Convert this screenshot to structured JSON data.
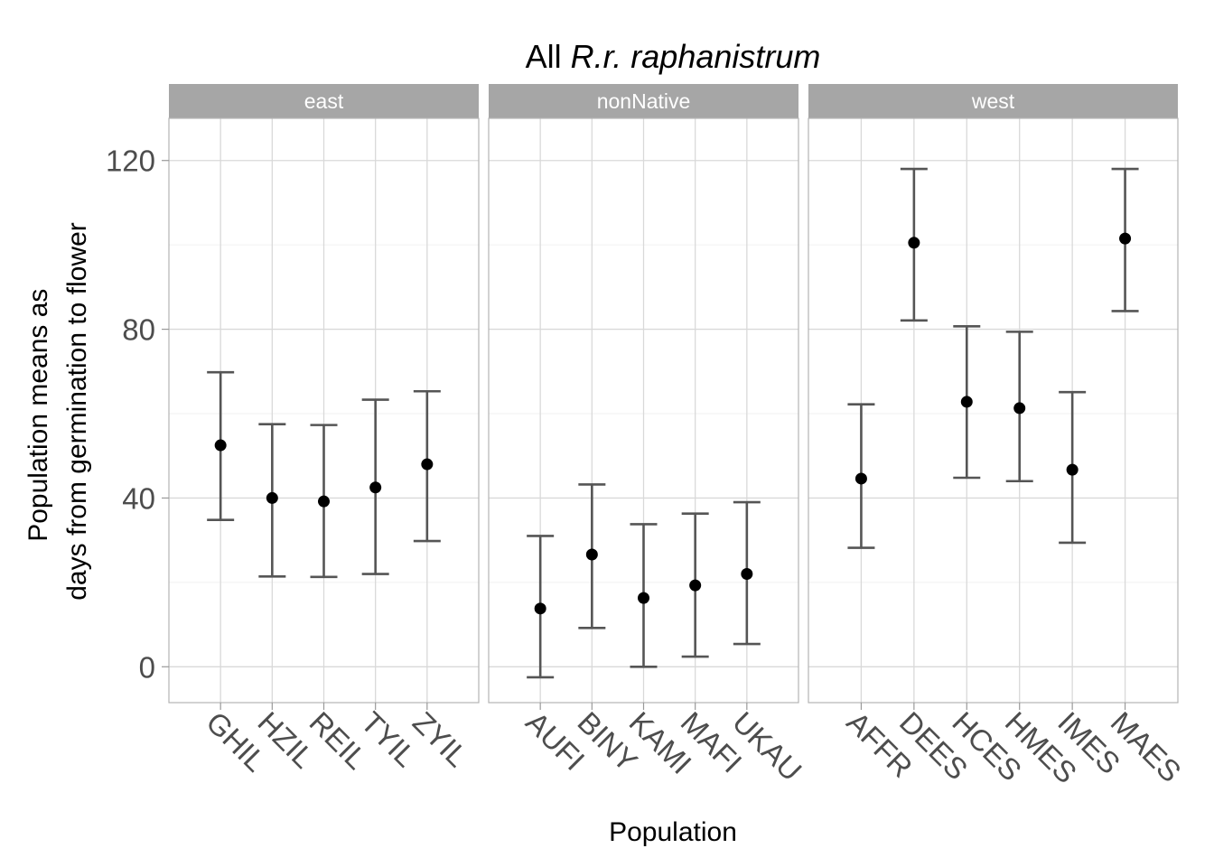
{
  "chart_data": {
    "type": "scatter",
    "title": {
      "prefix": "All ",
      "italic": "R.r. raphanistrum"
    },
    "xlabel": "Population",
    "ylabel_lines": [
      "Population means as",
      "days from germination to flower"
    ],
    "ylim": [
      -8.5,
      130
    ],
    "y_ticks": [
      0,
      40,
      80,
      120
    ],
    "y_tick_labels": [
      "0",
      "40",
      "80",
      "120"
    ],
    "grid": true,
    "panels": [
      {
        "label": "east",
        "categories": [
          "GHIL",
          "HZIL",
          "REIL",
          "TYIL",
          "ZYIL"
        ],
        "mean": [
          52.5,
          40.0,
          39.2,
          42.5,
          48.0
        ],
        "lower": [
          34.8,
          21.4,
          21.3,
          22.0,
          29.8
        ],
        "upper": [
          69.8,
          57.5,
          57.3,
          63.3,
          65.3
        ]
      },
      {
        "label": "nonNative",
        "categories": [
          "AUFI",
          "BINY",
          "KAMI",
          "MAFI",
          "UKAU"
        ],
        "mean": [
          13.8,
          26.6,
          16.3,
          19.3,
          22.0
        ],
        "lower": [
          -2.5,
          9.2,
          0.0,
          2.4,
          5.4
        ],
        "upper": [
          31.0,
          43.2,
          33.8,
          36.3,
          39.0
        ]
      },
      {
        "label": "west",
        "categories": [
          "AFFR",
          "DEES",
          "HCES",
          "HMES",
          "IMES",
          "MAES"
        ],
        "mean": [
          44.6,
          100.5,
          62.8,
          61.3,
          46.7,
          101.5
        ],
        "lower": [
          28.2,
          82.1,
          44.8,
          44.0,
          29.4,
          84.3
        ],
        "upper": [
          62.2,
          118.0,
          80.7,
          79.4,
          65.1,
          118.0
        ]
      }
    ]
  }
}
